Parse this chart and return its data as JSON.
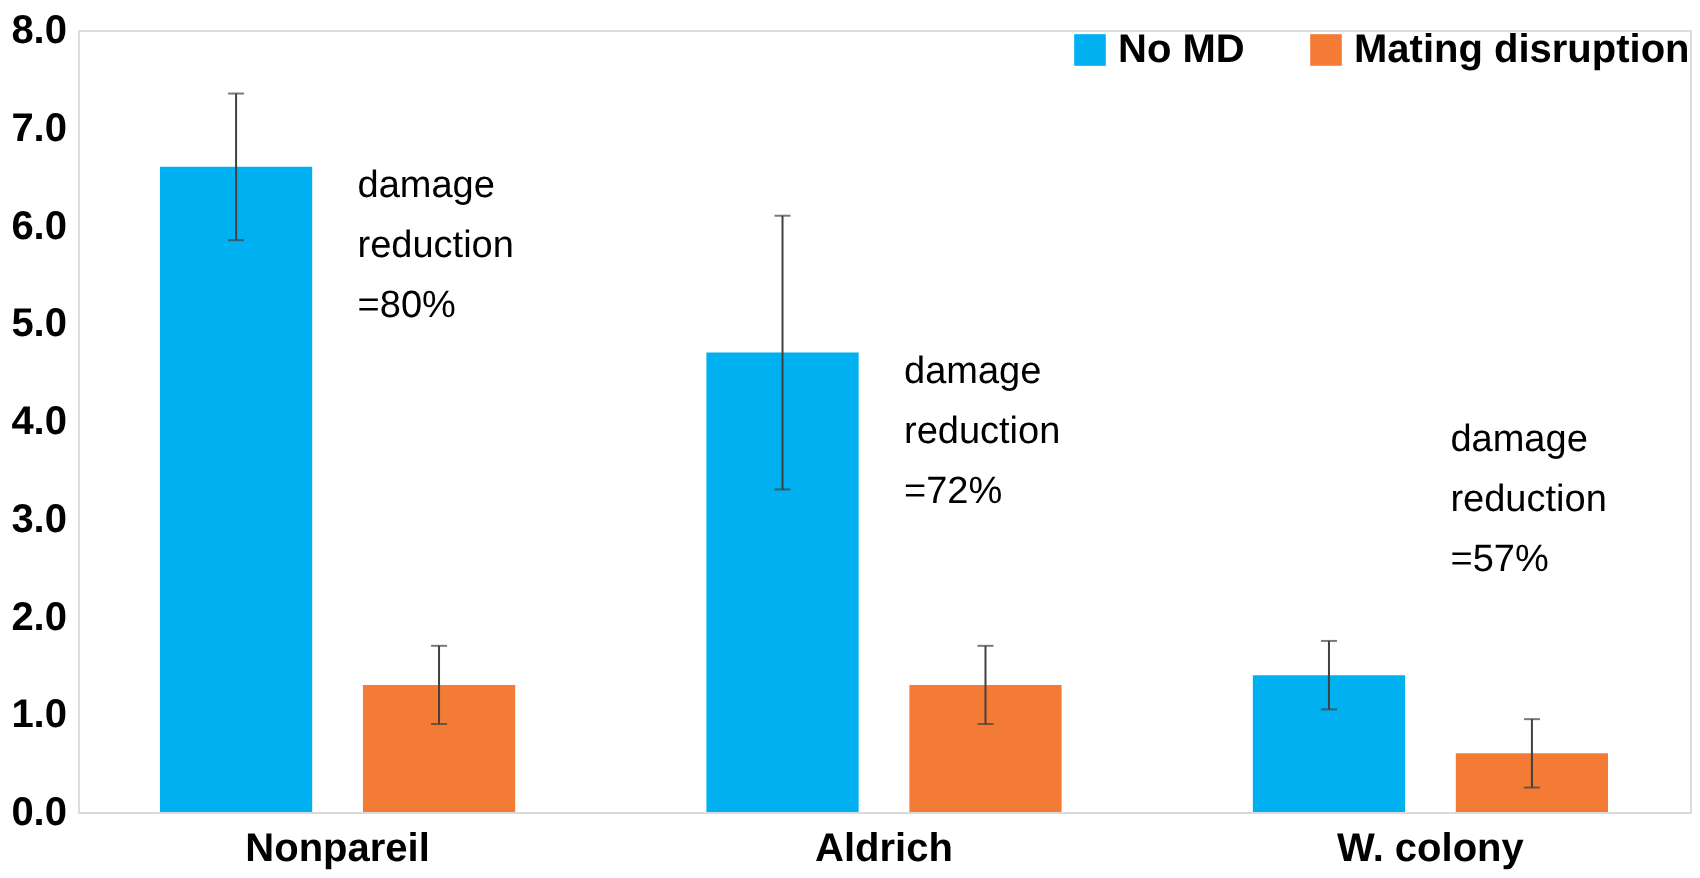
{
  "chart_data": {
    "type": "bar",
    "categories": [
      "Nonpareil",
      "Aldrich",
      "W. colony"
    ],
    "series": [
      {
        "name": "No MD",
        "color": "#00b0f0",
        "values": [
          6.6,
          4.7,
          1.4
        ],
        "errors": [
          0.75,
          1.4,
          0.35
        ]
      },
      {
        "name": "Mating disruption",
        "color": "#f47b35",
        "values": [
          1.3,
          1.3,
          0.6
        ],
        "errors": [
          0.4,
          0.4,
          0.35
        ]
      }
    ],
    "ylim": [
      0,
      8
    ],
    "yticks": [
      {
        "value": 0,
        "label": "0.0"
      },
      {
        "value": 1,
        "label": "1.0"
      },
      {
        "value": 2,
        "label": "2.0"
      },
      {
        "value": 3,
        "label": "3.0"
      },
      {
        "value": 4,
        "label": "4.0"
      },
      {
        "value": 5,
        "label": "5.0"
      },
      {
        "value": 6,
        "label": "6.0"
      },
      {
        "value": 7,
        "label": "7.0"
      },
      {
        "value": 8,
        "label": "8.0"
      }
    ],
    "annotations": [
      "damage\nreduction\n=80%",
      "damage\nreduction\n=72%",
      "damage\nreduction\n=57%"
    ],
    "grid": false,
    "legend": "top right"
  }
}
